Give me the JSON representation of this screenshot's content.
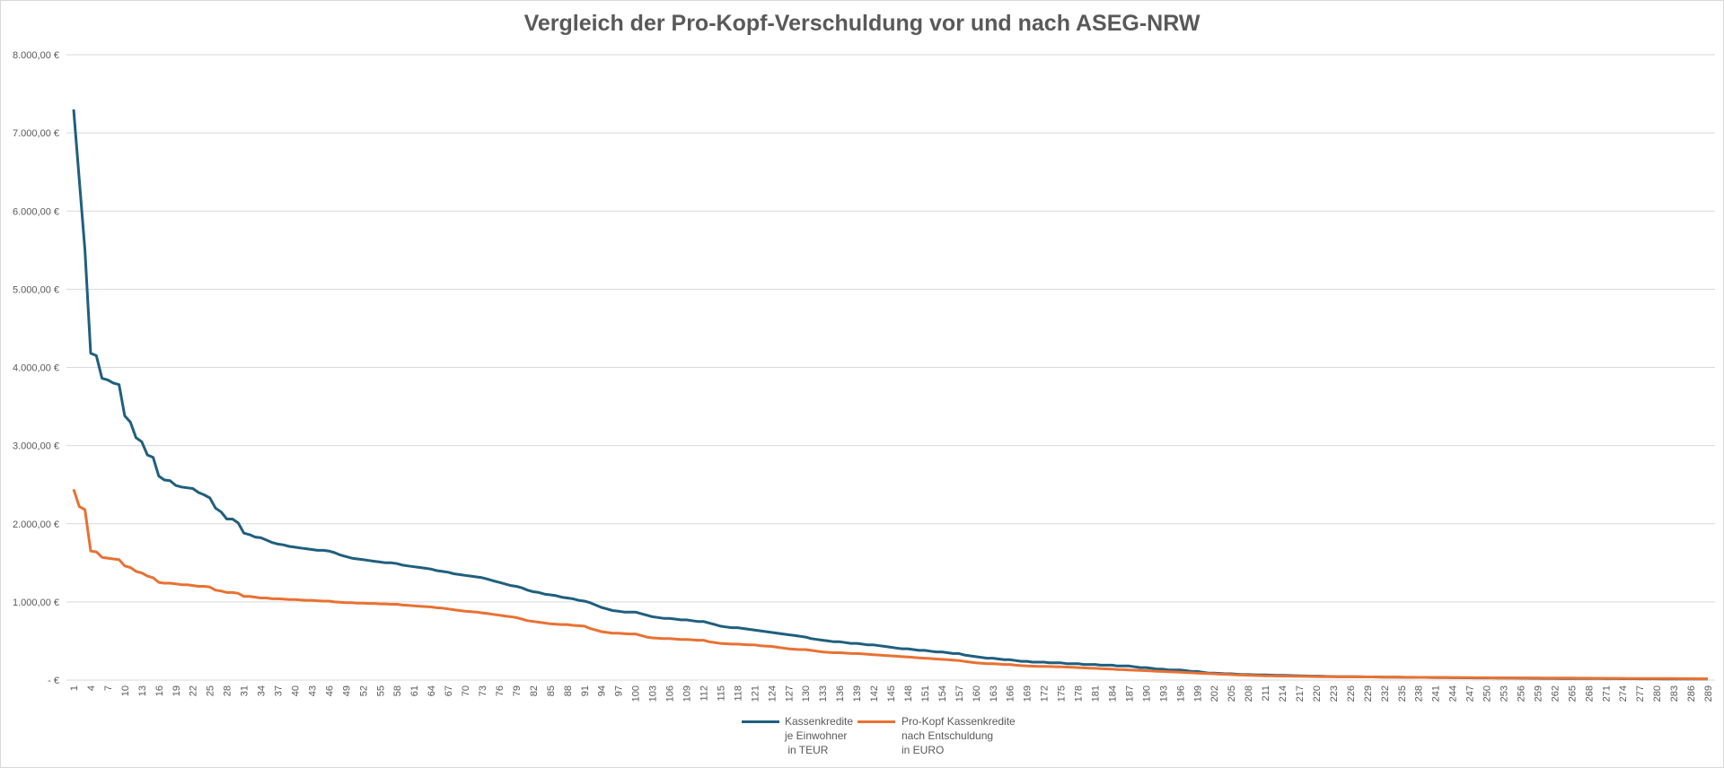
{
  "chart_data": {
    "type": "line",
    "title": "Vergleich der Pro-Kopf-Verschuldung vor und nach ASEG-NRW",
    "xlabel": "",
    "ylabel": "",
    "ylim": [
      0,
      8000
    ],
    "y_tick_values": [
      0,
      1000,
      2000,
      3000,
      4000,
      5000,
      6000,
      7000,
      8000
    ],
    "y_tick_labels": [
      "-   €",
      "1.000,00 €",
      "2.000,00 €",
      "3.000,00 €",
      "4.000,00 €",
      "5.000,00 €",
      "6.000,00 €",
      "7.000,00 €",
      "8.000,00 €"
    ],
    "x_range": [
      1,
      289
    ],
    "x_tick_labels": [
      "1",
      "4",
      "7",
      "10",
      "13",
      "16",
      "19",
      "22",
      "25",
      "28",
      "31",
      "34",
      "37",
      "40",
      "43",
      "46",
      "49",
      "52",
      "55",
      "58",
      "61",
      "64",
      "67",
      "70",
      "73",
      "76",
      "79",
      "82",
      "85",
      "88",
      "91",
      "94",
      "97",
      "100",
      "103",
      "106",
      "109",
      "112",
      "115",
      "118",
      "121",
      "124",
      "127",
      "130",
      "133",
      "136",
      "139",
      "142",
      "145",
      "148",
      "151",
      "154",
      "157",
      "160",
      "163",
      "166",
      "169",
      "172",
      "175",
      "178",
      "181",
      "184",
      "187",
      "190",
      "193",
      "196",
      "199",
      "202",
      "205",
      "208",
      "211",
      "214",
      "217",
      "220",
      "223",
      "226",
      "229",
      "232",
      "235",
      "238",
      "241",
      "244",
      "247",
      "250",
      "253",
      "256",
      "259",
      "262",
      "265",
      "268",
      "271",
      "274",
      "277",
      "280",
      "283",
      "286",
      "289"
    ],
    "grid": true,
    "legend_position": "bottom",
    "series": [
      {
        "name": "Kassenkredite\nje Einwohner\n in TEUR",
        "color": "#1f5f7e",
        "values": [
          7300,
          6400,
          5500,
          4180,
          4150,
          3860,
          3840,
          3800,
          3780,
          3380,
          3300,
          3100,
          3050,
          2880,
          2850,
          2610,
          2560,
          2550,
          2490,
          2470,
          2460,
          2450,
          2400,
          2370,
          2330,
          2200,
          2150,
          2060,
          2060,
          2010,
          1880,
          1860,
          1830,
          1820,
          1790,
          1760,
          1740,
          1730,
          1710,
          1700,
          1690,
          1680,
          1670,
          1660,
          1660,
          1650,
          1630,
          1600,
          1580,
          1560,
          1550,
          1540,
          1530,
          1520,
          1510,
          1500,
          1500,
          1490,
          1470,
          1460,
          1450,
          1440,
          1430,
          1420,
          1400,
          1390,
          1380,
          1360,
          1350,
          1340,
          1330,
          1320,
          1310,
          1290,
          1270,
          1250,
          1230,
          1210,
          1200,
          1180,
          1150,
          1130,
          1120,
          1100,
          1090,
          1080,
          1060,
          1050,
          1040,
          1020,
          1010,
          990,
          960,
          930,
          910,
          890,
          880,
          870,
          870,
          870,
          850,
          830,
          810,
          800,
          790,
          790,
          780,
          770,
          770,
          760,
          750,
          750,
          730,
          710,
          690,
          680,
          670,
          670,
          660,
          650,
          640,
          630,
          620,
          610,
          600,
          590,
          580,
          570,
          560,
          550,
          530,
          520,
          510,
          500,
          490,
          490,
          480,
          470,
          470,
          460,
          450,
          450,
          440,
          430,
          420,
          410,
          400,
          400,
          390,
          380,
          380,
          370,
          360,
          360,
          350,
          340,
          340,
          320,
          310,
          300,
          290,
          280,
          280,
          270,
          260,
          260,
          250,
          240,
          240,
          230,
          230,
          230,
          220,
          220,
          220,
          210,
          210,
          210,
          200,
          200,
          200,
          190,
          190,
          190,
          180,
          180,
          180,
          170,
          160,
          160,
          150,
          140,
          140,
          130,
          130,
          130,
          120,
          110,
          110,
          100,
          90,
          90,
          85,
          80,
          80,
          75,
          70,
          70,
          68,
          66,
          65,
          63,
          61,
          60,
          58,
          56,
          55,
          53,
          51,
          50,
          48,
          46,
          45,
          44,
          43,
          42,
          42,
          41,
          40,
          40,
          39,
          38,
          38,
          37,
          36,
          35,
          35,
          34,
          34,
          33,
          32,
          32,
          31,
          30,
          30,
          29,
          29,
          28,
          28,
          27,
          27,
          26,
          26,
          25,
          25,
          24,
          24,
          23,
          23,
          22,
          22,
          22,
          21,
          21,
          20,
          20,
          20,
          19,
          19,
          19,
          18,
          18,
          18,
          17,
          17,
          17,
          16,
          16,
          16,
          16,
          15,
          15,
          15,
          15,
          15,
          14,
          14,
          14,
          14
        ]
      },
      {
        "name": "Pro-Kopf Kassenkredite\nnach Entschuldung\nin EURO",
        "color": "#e97132",
        "values": [
          2440,
          2220,
          2180,
          1650,
          1640,
          1570,
          1560,
          1550,
          1540,
          1460,
          1440,
          1390,
          1370,
          1330,
          1310,
          1250,
          1240,
          1240,
          1230,
          1220,
          1220,
          1210,
          1200,
          1200,
          1190,
          1150,
          1140,
          1120,
          1120,
          1110,
          1070,
          1070,
          1060,
          1050,
          1050,
          1040,
          1040,
          1035,
          1030,
          1030,
          1025,
          1020,
          1020,
          1015,
          1010,
          1010,
          1000,
          995,
          990,
          990,
          985,
          985,
          980,
          980,
          975,
          975,
          970,
          970,
          960,
          955,
          950,
          945,
          940,
          935,
          925,
          920,
          910,
          900,
          890,
          880,
          875,
          870,
          860,
          850,
          840,
          830,
          820,
          810,
          800,
          780,
          760,
          750,
          740,
          730,
          720,
          715,
          710,
          710,
          700,
          695,
          690,
          660,
          640,
          620,
          610,
          600,
          600,
          595,
          590,
          590,
          570,
          550,
          540,
          535,
          530,
          530,
          525,
          520,
          520,
          515,
          510,
          510,
          490,
          480,
          470,
          465,
          460,
          460,
          455,
          450,
          450,
          440,
          435,
          430,
          420,
          410,
          400,
          395,
          390,
          390,
          380,
          370,
          360,
          355,
          350,
          350,
          345,
          340,
          340,
          335,
          330,
          325,
          320,
          315,
          310,
          305,
          300,
          295,
          290,
          285,
          280,
          275,
          270,
          265,
          260,
          255,
          250,
          240,
          230,
          220,
          215,
          210,
          210,
          205,
          200,
          200,
          190,
          185,
          180,
          178,
          176,
          175,
          173,
          171,
          170,
          166,
          163,
          160,
          156,
          153,
          150,
          146,
          143,
          140,
          136,
          133,
          130,
          126,
          123,
          120,
          116,
          113,
          110,
          106,
          103,
          100,
          96,
          93,
          90,
          86,
          83,
          80,
          76,
          73,
          70,
          67,
          64,
          62,
          60,
          57,
          55,
          54,
          52,
          51,
          50,
          49,
          48,
          47,
          46,
          45,
          44,
          44,
          43,
          43,
          42,
          42,
          41,
          41,
          40,
          40,
          39,
          38,
          38,
          37,
          37,
          36,
          36,
          35,
          35,
          34,
          34,
          33,
          33,
          32,
          32,
          31,
          31,
          30,
          30,
          30,
          29,
          29,
          29,
          28,
          28,
          28,
          27,
          27,
          27,
          26,
          26,
          26,
          25,
          25,
          25,
          24,
          24,
          24,
          23,
          23,
          23,
          22,
          22,
          22,
          21,
          21,
          21,
          20,
          20,
          20,
          19,
          19,
          19,
          18,
          18,
          17,
          17,
          16,
          15
        ]
      }
    ]
  }
}
